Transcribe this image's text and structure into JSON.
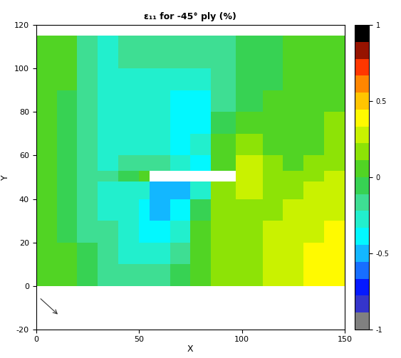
{
  "chart_data": {
    "type": "heatmap",
    "title": "ε₁₁ for -45° ply (%)",
    "x_label": "X",
    "y_label": "Y",
    "xlim": [
      0,
      150
    ],
    "xticks": [
      0,
      50,
      100,
      150
    ],
    "ylim": [
      -20,
      120
    ],
    "yticks": [
      -20,
      0,
      20,
      40,
      60,
      80,
      100,
      120
    ],
    "x_edges": [
      0,
      10,
      20,
      30,
      40,
      50,
      55,
      65,
      75,
      85,
      97,
      110,
      120,
      130,
      140,
      150
    ],
    "y_edges": [
      0,
      10,
      20,
      30,
      40,
      48,
      53,
      60,
      70,
      80,
      90,
      100,
      115
    ],
    "cells": [
      [
        0.0,
        0.0,
        -0.1,
        -0.15,
        -0.2,
        -0.2,
        -0.2,
        -0.1,
        0.05,
        0.15,
        0.2,
        0.25,
        0.3,
        0.35,
        0.35
      ],
      [
        0.0,
        0.0,
        -0.1,
        -0.2,
        -0.25,
        -0.25,
        -0.3,
        -0.15,
        0.05,
        0.15,
        0.2,
        0.25,
        0.3,
        0.35,
        0.35
      ],
      [
        0.0,
        -0.05,
        -0.15,
        -0.2,
        -0.3,
        -0.35,
        -0.4,
        -0.3,
        0.0,
        0.15,
        0.2,
        0.25,
        0.3,
        0.3,
        0.35
      ],
      [
        0.0,
        -0.05,
        -0.15,
        -0.25,
        -0.3,
        -0.4,
        -0.5,
        -0.4,
        -0.1,
        0.15,
        0.2,
        0.2,
        0.25,
        0.3,
        0.3
      ],
      [
        0.0,
        -0.05,
        -0.15,
        -0.25,
        -0.25,
        -0.3,
        -0.5,
        -0.45,
        -0.3,
        0.15,
        0.25,
        0.2,
        0.2,
        0.25,
        0.3
      ],
      [
        0.0,
        -0.05,
        -0.15,
        -0.2,
        -0.1,
        0.1,
        null,
        null,
        null,
        null,
        0.3,
        0.2,
        0.15,
        0.2,
        0.25
      ],
      [
        0.0,
        -0.05,
        -0.2,
        -0.25,
        -0.2,
        -0.15,
        -0.2,
        -0.3,
        -0.35,
        0.1,
        0.25,
        0.15,
        0.1,
        0.15,
        0.2
      ],
      [
        0.0,
        -0.05,
        -0.2,
        -0.25,
        -0.25,
        -0.25,
        -0.3,
        -0.35,
        -0.3,
        0.0,
        0.15,
        0.1,
        0.05,
        0.1,
        0.15
      ],
      [
        0.0,
        -0.05,
        -0.2,
        -0.25,
        -0.25,
        -0.25,
        -0.3,
        -0.4,
        -0.35,
        -0.1,
        0.05,
        0.05,
        0.05,
        0.1,
        0.15
      ],
      [
        0.0,
        -0.05,
        -0.2,
        -0.3,
        -0.25,
        -0.25,
        -0.3,
        -0.35,
        -0.4,
        -0.2,
        -0.05,
        0.0,
        0.05,
        0.1,
        0.1
      ],
      [
        0.0,
        0.0,
        -0.2,
        -0.3,
        -0.25,
        -0.25,
        -0.25,
        -0.3,
        -0.3,
        -0.2,
        -0.1,
        -0.05,
        0.0,
        0.1,
        0.1
      ],
      [
        0.0,
        0.0,
        -0.15,
        -0.25,
        -0.2,
        -0.2,
        -0.2,
        -0.2,
        -0.2,
        -0.15,
        -0.1,
        -0.05,
        0.0,
        0.05,
        0.1
      ]
    ],
    "colorbar_range": [
      -1,
      1
    ],
    "colorbar_ticks": [
      -1,
      -0.5,
      0,
      0.5,
      1
    ]
  }
}
